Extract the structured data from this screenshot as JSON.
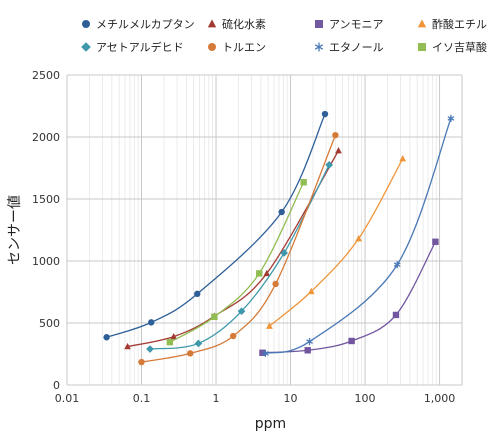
{
  "chart_data": {
    "type": "line",
    "xscale": "log",
    "xlabel": "ppm",
    "ylabel": "センサー値",
    "xlim": [
      0.01,
      2000
    ],
    "ylim": [
      0,
      2500
    ],
    "x_ticks": [
      0.01,
      0.1,
      1,
      10,
      100,
      1000
    ],
    "x_tick_labels": [
      "0.01",
      "0.1",
      "1",
      "10",
      "100",
      "1,000"
    ],
    "y_ticks": [
      0,
      500,
      1000,
      1500,
      2000,
      2500
    ],
    "y_tick_labels": [
      "0",
      "500",
      "1000",
      "1500",
      "2000",
      "2500"
    ],
    "grid": true,
    "legend_position": "top",
    "series": [
      {
        "name": "メチルメルカプタン",
        "color": "#2e5f98",
        "marker": "circle",
        "x": [
          0.034,
          0.135,
          0.56,
          7.6,
          29
        ],
        "y": [
          385,
          505,
          735,
          1395,
          2185
        ]
      },
      {
        "name": "硫化水素",
        "color": "#a33a32",
        "marker": "triangle",
        "x": [
          0.065,
          0.27,
          0.95,
          4.8,
          44
        ],
        "y": [
          310,
          390,
          555,
          900,
          1890
        ]
      },
      {
        "name": "アンモニア",
        "color": "#7256a0",
        "marker": "square",
        "x": [
          4.2,
          17,
          66,
          260,
          880
        ],
        "y": [
          260,
          280,
          355,
          565,
          1155
        ]
      },
      {
        "name": "酢酸エチル",
        "color": "#f0953a",
        "marker": "triangle",
        "x": [
          5.2,
          19,
          82,
          320
        ],
        "y": [
          475,
          755,
          1180,
          1825
        ]
      },
      {
        "name": "アセトアルデヒド",
        "color": "#3e98ac",
        "marker": "diamond",
        "x": [
          0.13,
          0.58,
          2.2,
          8.2,
          33
        ],
        "y": [
          290,
          335,
          595,
          1065,
          1775
        ]
      },
      {
        "name": "トルエン",
        "color": "#d57b3a",
        "marker": "circle",
        "x": [
          0.1,
          0.45,
          1.7,
          6.3,
          40
        ],
        "y": [
          185,
          255,
          395,
          815,
          2015
        ]
      },
      {
        "name": "エタノール",
        "color": "#4978b7",
        "marker": "star",
        "x": [
          4.6,
          18,
          270,
          1420
        ],
        "y": [
          255,
          350,
          970,
          2150
        ]
      },
      {
        "name": "イソ吉草酸",
        "color": "#92bd52",
        "marker": "square",
        "x": [
          0.24,
          0.95,
          3.8,
          15
        ],
        "y": [
          345,
          550,
          900,
          1635
        ]
      }
    ]
  }
}
